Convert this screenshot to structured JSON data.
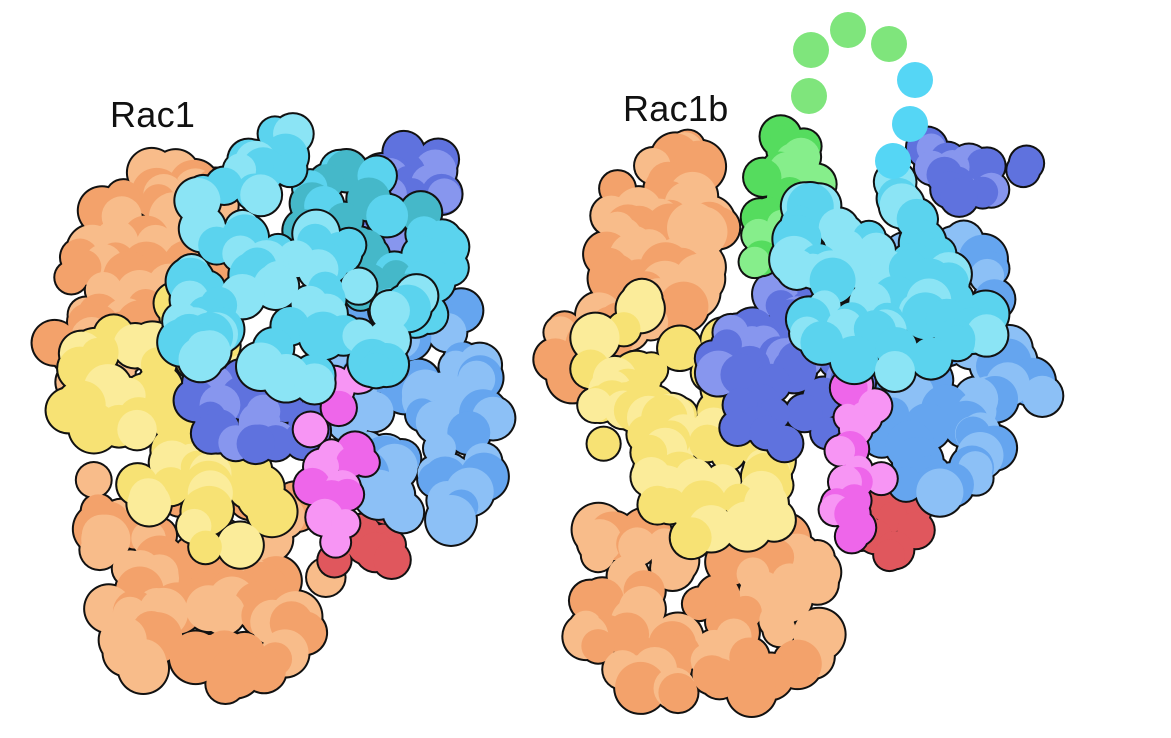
{
  "labels": {
    "left": "Rac1",
    "right": "Rac1b"
  },
  "colors": {
    "outline": "#111111",
    "orange": "#f3a26b",
    "orange_light": "#f8bc8a",
    "yellow": "#f7e274",
    "yellow_light": "#fbec9a",
    "cyan": "#5bd3ee",
    "cyan_light": "#8be4f5",
    "teal": "#45b8c9",
    "blue": "#65a5ef",
    "blue_light": "#8cc0f6",
    "indigo": "#5f72de",
    "indigo_light": "#8796ee",
    "magenta": "#ee66ea",
    "magenta_light": "#f795f4",
    "red": "#e0575d",
    "green": "#55dc5e",
    "green_light": "#86ee8b",
    "dots_green": "#7fe57c",
    "dots_cyan": "#55d6f5"
  }
}
